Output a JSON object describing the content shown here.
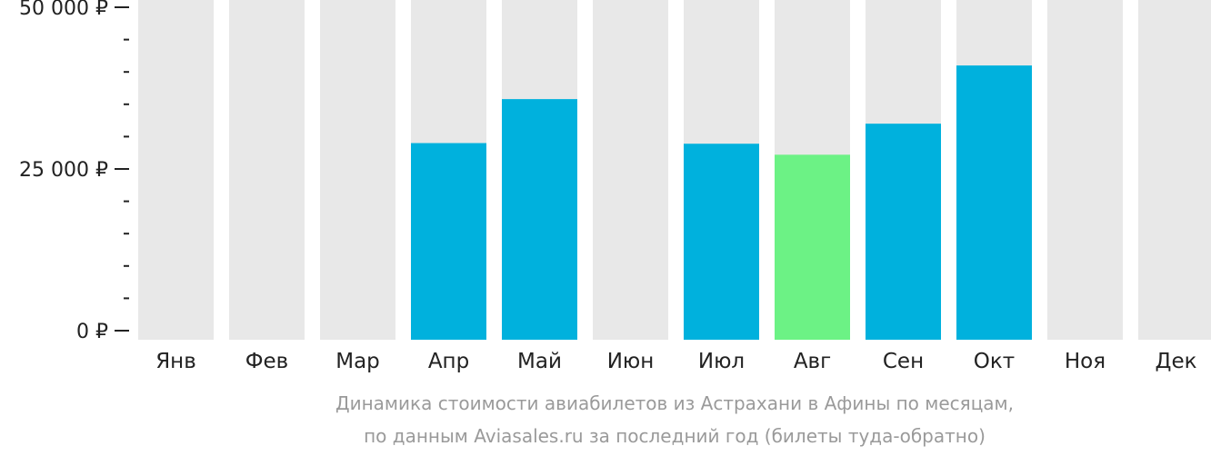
{
  "chart_data": {
    "type": "bar",
    "categories": [
      "Янв",
      "Фев",
      "Мар",
      "Апр",
      "Май",
      "Июн",
      "Июл",
      "Авг",
      "Сен",
      "Окт",
      "Ноя",
      "Дек"
    ],
    "values": [
      null,
      null,
      null,
      29000,
      35800,
      null,
      28900,
      27200,
      32000,
      41000,
      null,
      null
    ],
    "highlight_index": 7,
    "ylim": [
      0,
      50000
    ],
    "y_ticks": [
      {
        "value": 0,
        "label": "0 ₽"
      },
      {
        "value": 25000,
        "label": "25 000 ₽"
      },
      {
        "value": 50000,
        "label": "50 000 ₽"
      }
    ],
    "y_minor_step": 5000,
    "colors": {
      "bar": "#00b1dd",
      "highlight": "#6cf285",
      "background_bar": "#e8e8e8",
      "axis": "#222222",
      "caption": "#9a9a9a"
    }
  },
  "caption": {
    "line1": "Динамика стоимости авиабилетов из Астрахани в Афины по месяцам,",
    "line2": "по данным Aviasales.ru за последний год (билеты туда-обратно)"
  }
}
